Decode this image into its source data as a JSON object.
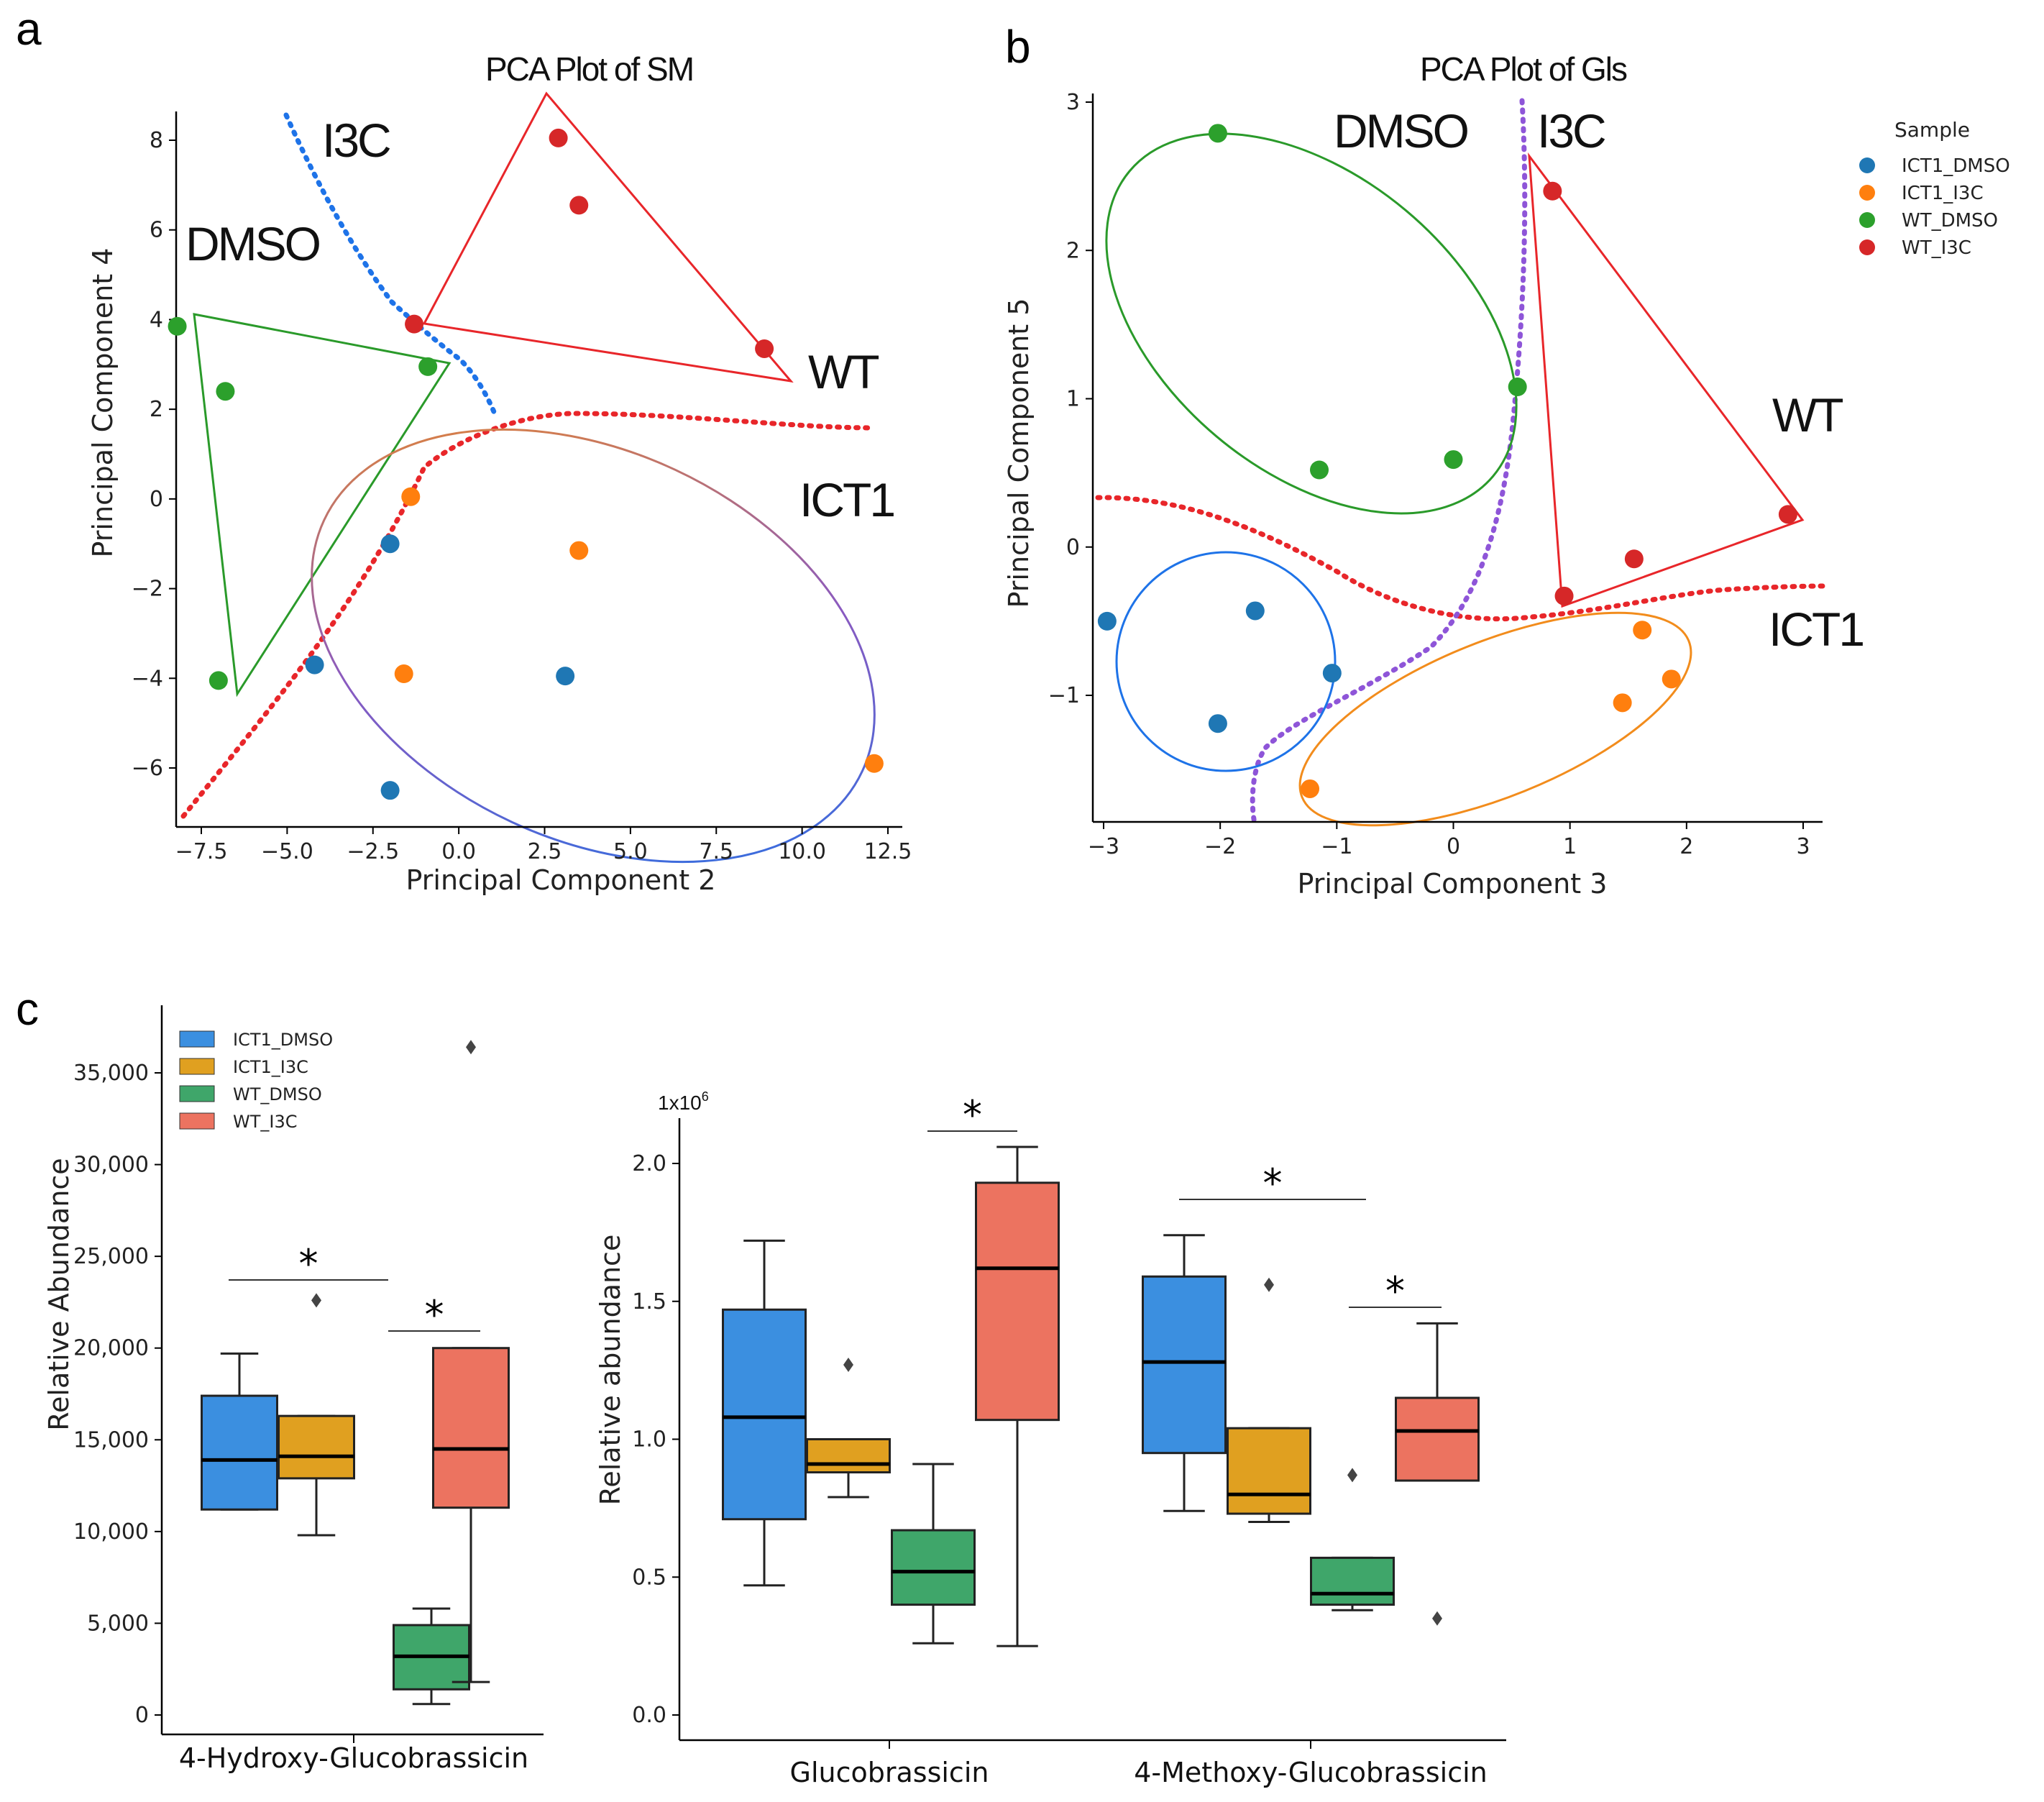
{
  "colors": {
    "ICT1_DMSO": "#1f77b4",
    "ICT1_I3C": "#ff7f0e",
    "WT_DMSO": "#2ca02c",
    "WT_I3C": "#d62728",
    "box_ICT1_DMSO": "#3b8fe0",
    "box_ICT1_I3C": "#e0a020",
    "box_WT_DMSO": "#3fa66a",
    "box_WT_I3C": "#ec7360",
    "green_line": "#2a9a2a",
    "red_line": "#e8262a",
    "blue_line": "#1e73e8",
    "orange_line": "#f28c1c",
    "purple_line": "#8e55d8"
  },
  "panels": {
    "a": {
      "letter": "a",
      "title": "PCA  Plot of SM"
    },
    "b": {
      "letter": "b",
      "title": "PCA  Plot of Gls"
    },
    "c": {
      "letter": "c"
    }
  },
  "chart_data": [
    {
      "id": "pca_sm",
      "type": "scatter",
      "title": "PCA  Plot of SM",
      "xlabel": "Principal Component 2",
      "ylabel": "Principal Component 4",
      "xticks": [
        -7.5,
        -5.0,
        -2.5,
        0.0,
        2.5,
        5.0,
        7.5,
        10.0,
        12.5
      ],
      "yticks": [
        -6,
        -4,
        -2,
        0,
        2,
        4,
        6,
        8
      ],
      "group_labels": [
        "I3C",
        "DMSO",
        "WT",
        "ICT1"
      ],
      "series": [
        {
          "name": "ICT1_DMSO",
          "points": [
            [
              -2.0,
              -1.0
            ],
            [
              -4.2,
              -3.7
            ],
            [
              3.1,
              -3.95
            ],
            [
              -2.0,
              -6.5
            ]
          ]
        },
        {
          "name": "ICT1_I3C",
          "points": [
            [
              -1.4,
              0.05
            ],
            [
              3.5,
              -1.15
            ],
            [
              -1.6,
              -3.9
            ],
            [
              12.1,
              -5.9
            ]
          ]
        },
        {
          "name": "WT_DMSO",
          "points": [
            [
              -8.2,
              3.85
            ],
            [
              -6.8,
              2.4
            ],
            [
              -0.9,
              2.95
            ],
            [
              -7.0,
              -4.05
            ]
          ]
        },
        {
          "name": "WT_I3C",
          "points": [
            [
              2.9,
              8.05
            ],
            [
              3.5,
              6.55
            ],
            [
              -1.3,
              3.9
            ],
            [
              8.9,
              3.35
            ]
          ]
        }
      ]
    },
    {
      "id": "pca_gls",
      "type": "scatter",
      "title": "PCA  Plot of Gls",
      "xlabel": "Principal Component 3",
      "ylabel": "Principal Component 5",
      "xticks": [
        -3,
        -2,
        -1,
        0,
        1,
        2,
        3
      ],
      "yticks": [
        -1,
        0,
        1,
        2,
        3
      ],
      "group_labels": [
        "DMSO",
        "I3C",
        "WT",
        "ICT1"
      ],
      "legend": {
        "title": "Sample",
        "position": "top-right",
        "entries": [
          "ICT1_DMSO",
          "ICT1_I3C",
          "WT_DMSO",
          "WT_I3C"
        ]
      },
      "series": [
        {
          "name": "ICT1_DMSO",
          "points": [
            [
              -2.97,
              -0.5
            ],
            [
              -1.7,
              -0.43
            ],
            [
              -1.04,
              -0.85
            ],
            [
              -2.02,
              -1.19
            ]
          ]
        },
        {
          "name": "ICT1_I3C",
          "points": [
            [
              1.62,
              -0.56
            ],
            [
              1.87,
              -0.89
            ],
            [
              1.45,
              -1.05
            ],
            [
              -1.23,
              -1.63
            ]
          ]
        },
        {
          "name": "WT_DMSO",
          "points": [
            [
              -2.02,
              2.79
            ],
            [
              0.55,
              1.08
            ],
            [
              -1.15,
              0.52
            ],
            [
              0.0,
              0.59
            ]
          ]
        },
        {
          "name": "WT_I3C",
          "points": [
            [
              0.85,
              2.4
            ],
            [
              2.87,
              0.22
            ],
            [
              1.55,
              -0.08
            ],
            [
              0.95,
              -0.33
            ]
          ]
        }
      ]
    },
    {
      "id": "box_4hydroxy",
      "type": "box",
      "ylabel": "Relative Abundance",
      "yticks": [
        "0",
        "5,000",
        "10,000",
        "15,000",
        "20,000",
        "25,000",
        "30,000",
        "35,000"
      ],
      "ytick_values": [
        0,
        5000,
        10000,
        15000,
        20000,
        25000,
        30000,
        35000
      ],
      "category": "4-Hydroxy-Glucobrassicin",
      "legend": {
        "position": "top-left",
        "entries": [
          "ICT1_DMSO",
          "ICT1_I3C",
          "WT_DMSO",
          "WT_I3C"
        ]
      },
      "boxes": [
        {
          "name": "ICT1_DMSO",
          "whisker_low": 11200,
          "q1": 11200,
          "median": 13900,
          "q3": 17400,
          "whisker_high": 19700,
          "outliers": []
        },
        {
          "name": "ICT1_I3C",
          "whisker_low": 9800,
          "q1": 12900,
          "median": 14100,
          "q3": 16300,
          "whisker_high": 16300,
          "outliers": [
            22600
          ]
        },
        {
          "name": "WT_DMSO",
          "whisker_low": 600,
          "q1": 1400,
          "median": 3200,
          "q3": 4900,
          "whisker_high": 5800,
          "outliers": []
        },
        {
          "name": "WT_I3C",
          "whisker_low": 1800,
          "q1": 11300,
          "median": 14500,
          "q3": 20000,
          "whisker_high": 20000,
          "outliers": [
            36400
          ]
        }
      ],
      "significance": [
        {
          "between": [
            "ICT1_DMSO",
            "WT_DMSO"
          ],
          "label": "*"
        },
        {
          "between": [
            "WT_DMSO",
            "WT_I3C"
          ],
          "label": "*"
        }
      ]
    },
    {
      "id": "box_gls",
      "type": "box",
      "ylabel": "Relative abundance",
      "multiplier_base": "1x10",
      "multiplier_exp": "6",
      "yticks": [
        "0.0",
        "0.5",
        "1.0",
        "1.5",
        "2.0"
      ],
      "ytick_values": [
        0.0,
        0.5,
        1.0,
        1.5,
        2.0
      ],
      "categories": [
        "Glucobrassicin",
        "4-Methoxy-Glucobrassicin"
      ],
      "groups": [
        {
          "category": "Glucobrassicin",
          "boxes": [
            {
              "name": "ICT1_DMSO",
              "whisker_low": 0.47,
              "q1": 0.71,
              "median": 1.08,
              "q3": 1.47,
              "whisker_high": 1.72,
              "outliers": []
            },
            {
              "name": "ICT1_I3C",
              "whisker_low": 0.79,
              "q1": 0.88,
              "median": 0.91,
              "q3": 1.0,
              "whisker_high": 1.0,
              "outliers": [
                1.27
              ]
            },
            {
              "name": "WT_DMSO",
              "whisker_low": 0.26,
              "q1": 0.4,
              "median": 0.52,
              "q3": 0.67,
              "whisker_high": 0.91,
              "outliers": []
            },
            {
              "name": "WT_I3C",
              "whisker_low": 0.25,
              "q1": 1.07,
              "median": 1.62,
              "q3": 1.93,
              "whisker_high": 2.06,
              "outliers": []
            }
          ],
          "significance": [
            {
              "between": [
                "WT_DMSO",
                "WT_I3C"
              ],
              "label": "*"
            }
          ]
        },
        {
          "category": "4-Methoxy-Glucobrassicin",
          "boxes": [
            {
              "name": "ICT1_DMSO",
              "whisker_low": 0.74,
              "q1": 0.95,
              "median": 1.28,
              "q3": 1.59,
              "whisker_high": 1.74,
              "outliers": []
            },
            {
              "name": "ICT1_I3C",
              "whisker_low": 0.7,
              "q1": 0.73,
              "median": 0.8,
              "q3": 1.04,
              "whisker_high": 1.04,
              "outliers": [
                1.56
              ]
            },
            {
              "name": "WT_DMSO",
              "whisker_low": 0.38,
              "q1": 0.4,
              "median": 0.44,
              "q3": 0.57,
              "whisker_high": 0.57,
              "outliers": [
                0.87
              ]
            },
            {
              "name": "WT_I3C",
              "whisker_low": 0.85,
              "q1": 0.85,
              "median": 1.03,
              "q3": 1.15,
              "whisker_high": 1.42,
              "outliers": [
                0.35
              ]
            }
          ],
          "significance": [
            {
              "between": [
                "ICT1_DMSO",
                "WT_DMSO"
              ],
              "label": "*"
            },
            {
              "between": [
                "WT_DMSO",
                "WT_I3C"
              ],
              "label": "*"
            }
          ]
        }
      ]
    }
  ]
}
